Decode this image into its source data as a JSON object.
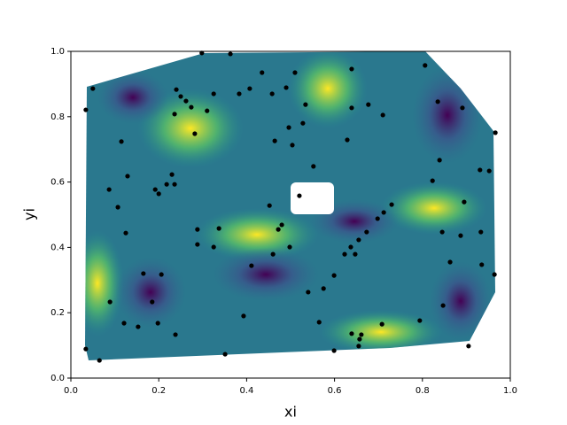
{
  "chart_data": {
    "type": "scatter",
    "xlabel": "xi",
    "ylabel": "yi",
    "color": "#000000",
    "xlim": [
      0,
      1
    ],
    "ylim": [
      0,
      1
    ],
    "xticks": [
      {
        "value": 0,
        "label": "0.0"
      },
      0.2,
      0.4,
      0.6,
      0.8,
      {
        "value": 1,
        "label": "1.0"
      }
    ],
    "yticks": [
      {
        "value": 0,
        "label": "0.0"
      },
      0.2,
      0.4,
      0.6,
      0.8,
      {
        "value": 1,
        "label": "1.0"
      }
    ],
    "x": [
      0.034,
      0.05,
      0.034,
      0.065,
      0.115,
      0.129,
      0.087,
      0.107,
      0.125,
      0.089,
      0.121,
      0.153,
      0.165,
      0.185,
      0.198,
      0.206,
      0.192,
      0.2,
      0.218,
      0.23,
      0.236,
      0.238,
      0.236,
      0.24,
      0.25,
      0.262,
      0.274,
      0.282,
      0.288,
      0.288,
      0.298,
      0.31,
      0.325,
      0.325,
      0.337,
      0.351,
      0.363,
      0.383,
      0.393,
      0.407,
      0.411,
      0.435,
      0.452,
      0.458,
      0.46,
      0.464,
      0.472,
      0.48,
      0.49,
      0.496,
      0.498,
      0.504,
      0.51,
      0.52,
      0.528,
      0.534,
      0.54,
      0.552,
      0.565,
      0.575,
      0.599,
      0.599,
      0.623,
      0.629,
      0.637,
      0.639,
      0.639,
      0.639,
      0.647,
      0.655,
      0.657,
      0.661,
      0.655,
      0.673,
      0.677,
      0.698,
      0.71,
      0.708,
      0.712,
      0.73,
      0.794,
      0.806,
      0.823,
      0.835,
      0.839,
      0.845,
      0.847,
      0.863,
      0.887,
      0.891,
      0.895,
      0.905,
      0.931,
      0.933,
      0.935,
      0.952,
      0.964,
      0.966
    ],
    "y": [
      0.821,
      0.886,
      0.089,
      0.054,
      0.724,
      0.618,
      0.577,
      0.523,
      0.444,
      0.233,
      0.168,
      0.157,
      0.32,
      0.233,
      0.168,
      0.317,
      0.577,
      0.564,
      0.593,
      0.623,
      0.593,
      0.133,
      0.808,
      0.883,
      0.862,
      0.848,
      0.829,
      0.748,
      0.455,
      0.409,
      0.995,
      0.818,
      0.87,
      0.401,
      0.458,
      0.073,
      0.992,
      0.87,
      0.19,
      0.886,
      0.344,
      0.935,
      0.528,
      0.87,
      0.379,
      0.726,
      0.455,
      0.469,
      0.889,
      0.767,
      0.401,
      0.713,
      0.935,
      0.558,
      0.78,
      0.837,
      0.263,
      0.648,
      0.171,
      0.274,
      0.314,
      0.084,
      0.379,
      0.729,
      0.401,
      0.946,
      0.827,
      0.136,
      0.379,
      0.423,
      0.119,
      0.133,
      0.098,
      0.447,
      0.837,
      0.488,
      0.805,
      0.165,
      0.507,
      0.531,
      0.176,
      0.957,
      0.604,
      0.846,
      0.667,
      0.447,
      0.222,
      0.355,
      0.436,
      0.827,
      0.539,
      0.098,
      0.637,
      0.447,
      0.347,
      0.634,
      0.317,
      0.751
    ]
  }
}
